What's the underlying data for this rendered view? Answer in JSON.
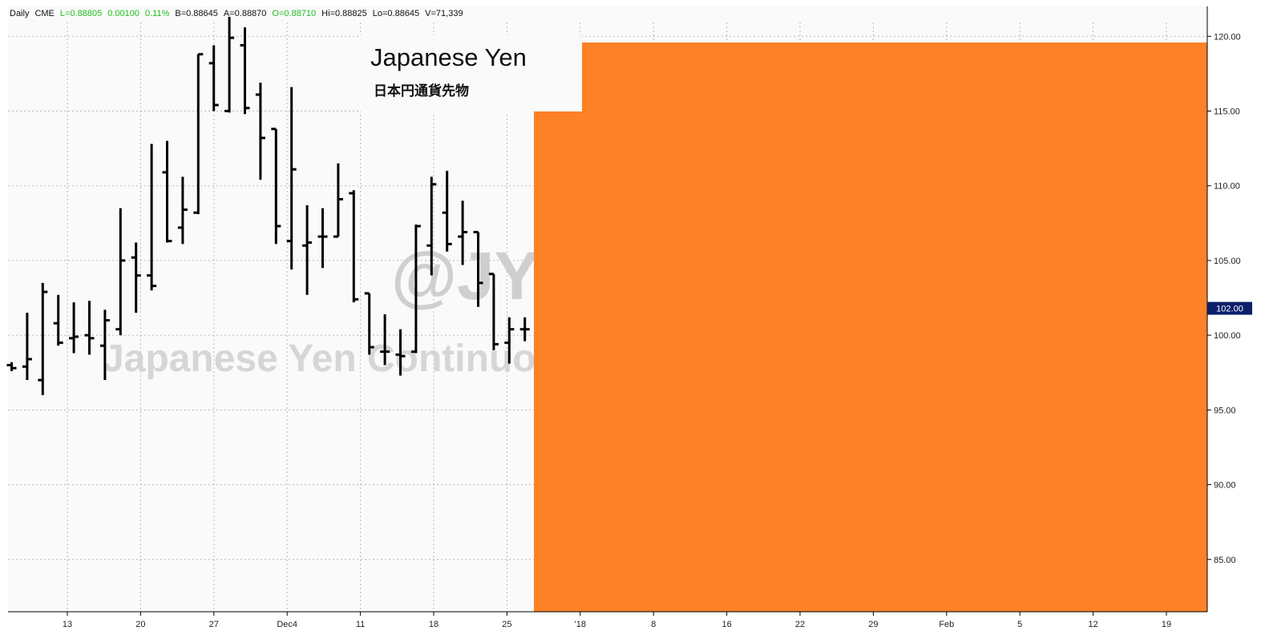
{
  "infobar": [
    {
      "text": "Daily",
      "color": "#111111"
    },
    {
      "text": "CME",
      "color": "#111111"
    },
    {
      "text": "L=0.88805",
      "color": "#1fbf1f"
    },
    {
      "text": "0.00100",
      "color": "#1fbf1f"
    },
    {
      "text": "0.11%",
      "color": "#1fbf1f"
    },
    {
      "text": "B=0.88645",
      "color": "#111111"
    },
    {
      "text": "A=0.88870",
      "color": "#111111"
    },
    {
      "text": "O=0.88710",
      "color": "#1fbf1f"
    },
    {
      "text": "Hi=0.88825",
      "color": "#111111"
    },
    {
      "text": "Lo=0.88645",
      "color": "#111111"
    },
    {
      "text": "V=71,339",
      "color": "#111111"
    }
  ],
  "title": "Japanese Yen",
  "subtitle": "日本円通貨先物",
  "watermark": {
    "line1": "@JY",
    "line2": "Japanese Yen Continuous"
  },
  "colors": {
    "overlay": "#fd8126",
    "bars": "#000000",
    "badge": "#0b1f6b",
    "grid": "#b8b8b8",
    "plot_bg": "#fafafa"
  },
  "chart_data": {
    "type": "ohlc",
    "title": "Japanese Yen",
    "subtitle": "日本円通貨先物",
    "ylim": [
      81.5,
      122.0
    ],
    "y_ticks": [
      "120.00",
      "115.00",
      "110.00",
      "105.00",
      "100.00",
      "95.00",
      "90.00",
      "85.00"
    ],
    "x_ticks": [
      "13",
      "20",
      "27",
      "Dec4",
      "11",
      "18",
      "25",
      "'18",
      "8",
      "16",
      "22",
      "29",
      "Feb",
      "5",
      "12",
      "19"
    ],
    "last_price_label": "102.00",
    "last_price": 101.8,
    "grid": true,
    "series": [
      {
        "bars": [
          [
            98.0,
            98.2,
            97.6,
            97.8
          ],
          [
            97.9,
            101.5,
            97.0,
            98.4
          ],
          [
            97.0,
            103.5,
            96.0,
            102.9
          ],
          [
            100.8,
            102.7,
            99.3,
            99.5
          ],
          [
            99.8,
            102.2,
            98.8,
            99.9
          ],
          [
            100.0,
            102.3,
            98.7,
            99.8
          ],
          [
            99.3,
            101.7,
            97.0,
            101.0
          ],
          [
            100.4,
            108.5,
            100.0,
            105.0
          ],
          [
            105.2,
            106.2,
            101.5,
            104.0
          ],
          [
            104.0,
            112.8,
            103.0,
            103.3
          ],
          [
            110.9,
            113.0,
            106.2,
            106.3
          ],
          [
            107.2,
            110.6,
            106.1,
            108.4
          ],
          [
            108.2,
            118.8,
            108.1,
            118.8
          ],
          [
            118.2,
            119.4,
            115.0,
            115.4
          ],
          [
            115.0,
            121.3,
            114.9,
            119.9
          ],
          [
            119.4,
            120.6,
            114.8,
            115.2
          ],
          [
            116.1,
            116.9,
            110.4,
            113.2
          ],
          [
            113.8,
            113.8,
            106.1,
            107.3
          ],
          [
            106.3,
            116.6,
            104.4,
            111.1
          ],
          [
            106.0,
            108.7,
            102.7,
            106.2
          ],
          [
            106.6,
            108.5,
            104.5,
            106.6
          ],
          [
            106.6,
            111.5,
            106.6,
            109.1
          ],
          [
            109.5,
            109.7,
            102.2,
            102.4
          ],
          [
            102.8,
            102.8,
            98.7,
            99.2
          ],
          [
            98.9,
            101.4,
            98.0,
            98.9
          ],
          [
            98.7,
            100.4,
            97.3,
            98.6
          ],
          [
            98.9,
            107.4,
            98.8,
            107.3
          ],
          [
            106.0,
            110.6,
            104.0,
            110.1
          ],
          [
            108.2,
            111.0,
            105.6,
            106.1
          ],
          [
            106.6,
            109.0,
            104.7,
            106.9
          ],
          [
            106.9,
            106.9,
            101.9,
            103.5
          ],
          [
            104.1,
            104.1,
            99.0,
            99.4
          ],
          [
            99.5,
            101.2,
            98.1,
            100.4
          ],
          [
            100.4,
            101.2,
            99.6,
            100.4
          ],
          [
            99.9,
            101.6,
            99.6,
            101.4
          ]
        ]
      }
    ]
  }
}
